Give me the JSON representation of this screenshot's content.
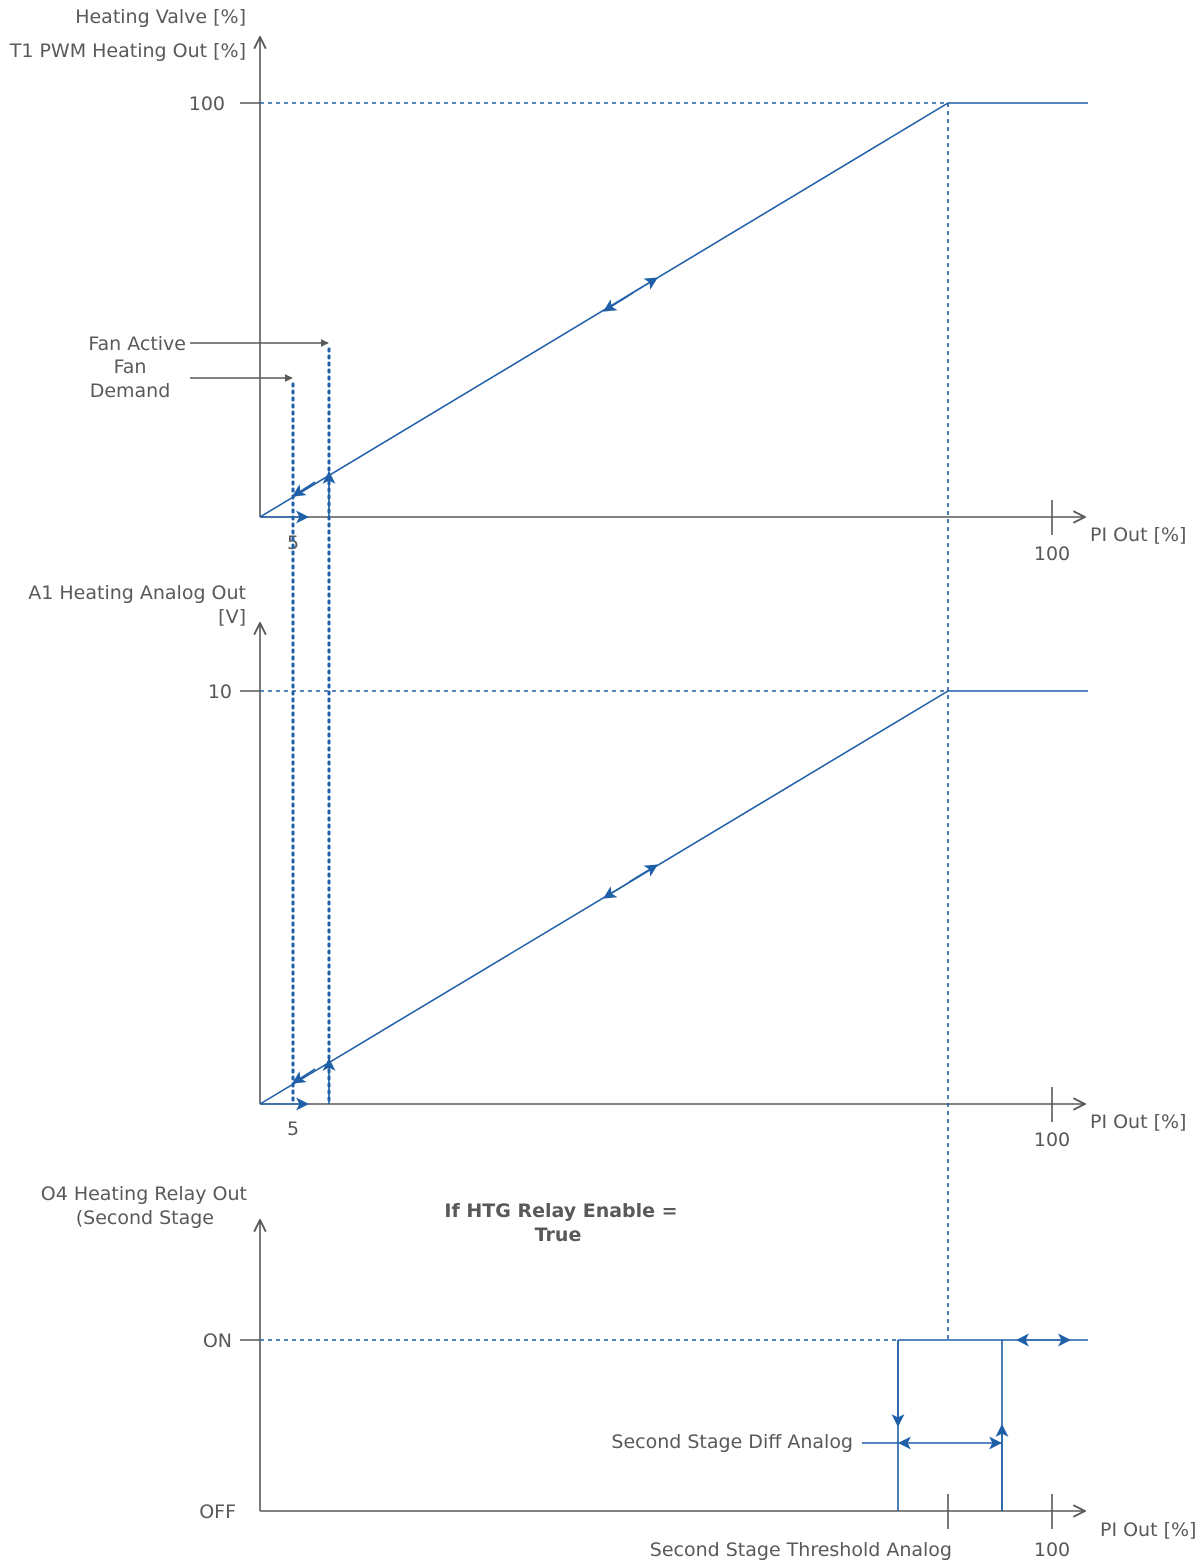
{
  "chart1": {
    "ylabel_line1": "Heating Valve [%]",
    "ylabel_line2": "T1 PWM Heating Out [%]",
    "y_max_tick": "100",
    "x_small_tick": "5",
    "x_max_tick": "100",
    "xlabel": "PI Out [%]",
    "fan_active_label": "Fan Active",
    "fan_demand_line1": "Fan",
    "fan_demand_line2": "Demand"
  },
  "chart2": {
    "ylabel_line1": "A1 Heating Analog Out",
    "ylabel_line2": "[V]",
    "y_max_tick": "10",
    "x_small_tick": "5",
    "x_max_tick": "100",
    "xlabel": "PI Out [%]"
  },
  "chart3": {
    "ylabel_line1": "O4 Heating Relay Out",
    "ylabel_line2": "(Second Stage",
    "condition_line1": "If HTG Relay Enable =",
    "condition_line2": "True",
    "on_tick": "ON",
    "off_tick": "OFF",
    "diff_label": "Second Stage Diff Analog",
    "threshold_label": "Second Stage Threshold Analog",
    "x_max_tick": "100",
    "xlabel": "PI Out [%]"
  },
  "colors": {
    "curve": "#1f5fa8",
    "axis": "#595959",
    "text": "#595959"
  }
}
